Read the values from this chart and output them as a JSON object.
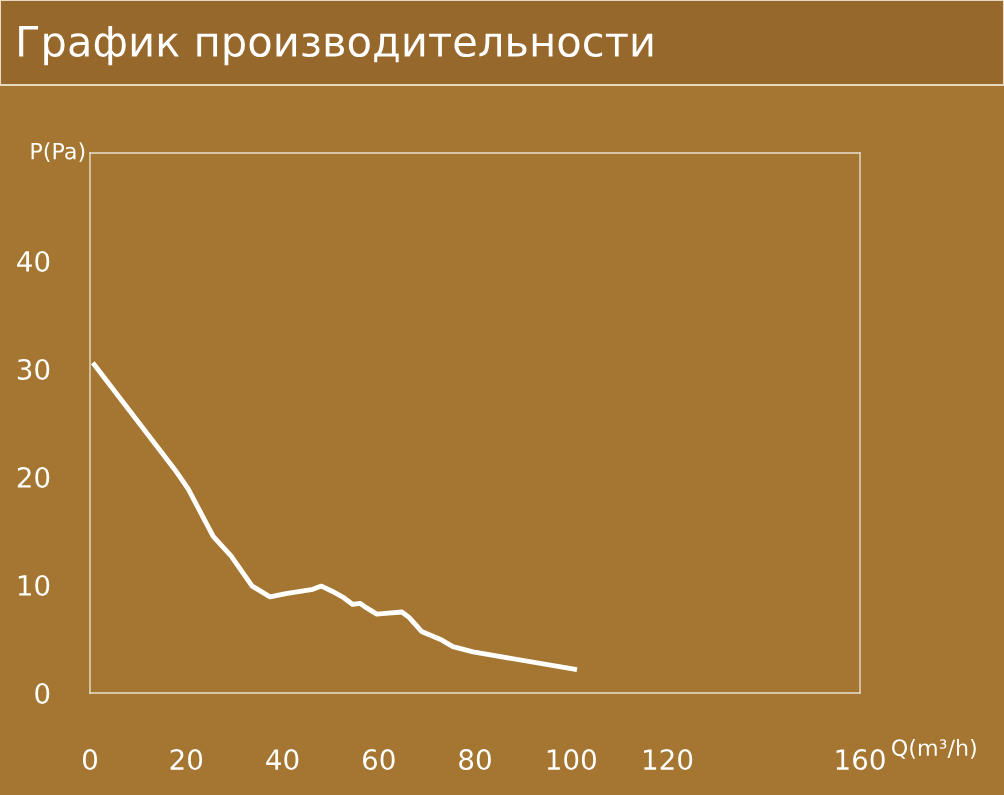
{
  "chart_data": {
    "type": "line",
    "title": "График производительности",
    "xlabel": "Q(m³/h)",
    "ylabel": "P(Pa)",
    "series": [
      {
        "color": "#ffffff",
        "x": [
          0.9,
          17.6,
          20.4,
          25.6,
          29.3,
          33.7,
          37.4,
          40.7,
          46.3,
          48.1,
          50.4,
          52.8,
          54.6,
          56.1,
          57.4,
          59.6,
          62.0,
          64.8,
          66.3,
          68.9,
          73.1,
          75.4,
          79.6,
          100.7
        ],
        "values": [
          30.4,
          20.7,
          18.9,
          14.5,
          12.7,
          9.9,
          8.9,
          9.2,
          9.6,
          9.9,
          9.4,
          8.8,
          8.2,
          8.3,
          7.9,
          7.3,
          7.4,
          7.5,
          7.0,
          5.7,
          4.9,
          4.3,
          3.8,
          2.2
        ]
      }
    ],
    "xlim": [
      0,
      160
    ],
    "ylim": [
      0,
      50
    ],
    "xticks": [
      0,
      20,
      40,
      60,
      80,
      100,
      120,
      160
    ],
    "yticks": [
      0,
      10,
      20,
      30,
      40
    ],
    "grid": false,
    "legend": false,
    "marker": "none",
    "line_style": "solid"
  }
}
